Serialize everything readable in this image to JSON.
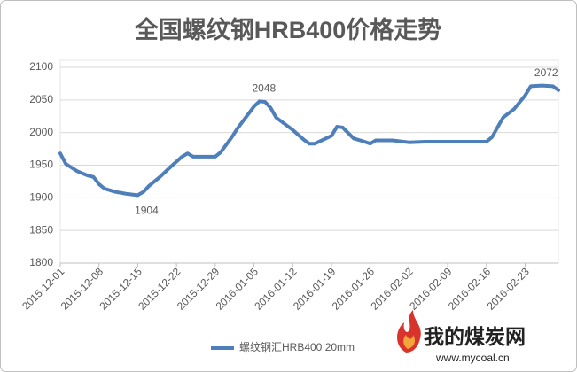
{
  "chart_data": {
    "type": "line",
    "title": "全国螺纹钢HRB400价格走势",
    "x": [
      "2015-12-01",
      "2015-12-02",
      "2015-12-04",
      "2015-12-06",
      "2015-12-07",
      "2015-12-08",
      "2015-12-09",
      "2015-12-11",
      "2015-12-13",
      "2015-12-15",
      "2015-12-16",
      "2015-12-17",
      "2015-12-19",
      "2015-12-21",
      "2015-12-23",
      "2015-12-24",
      "2015-12-25",
      "2015-12-29",
      "2015-12-30",
      "2016-01-01",
      "2016-01-02",
      "2016-01-05",
      "2016-01-06",
      "2016-01-07",
      "2016-01-08",
      "2016-01-09",
      "2016-01-12",
      "2016-01-14",
      "2016-01-15",
      "2016-01-16",
      "2016-01-19",
      "2016-01-20",
      "2016-01-21",
      "2016-01-23",
      "2016-01-25",
      "2016-01-26",
      "2016-01-27",
      "2016-01-30",
      "2016-02-02",
      "2016-02-05",
      "2016-02-16",
      "2016-02-17",
      "2016-02-19",
      "2016-02-21",
      "2016-02-23",
      "2016-02-24",
      "2016-02-26",
      "2016-02-28",
      "2016-02-29"
    ],
    "series": [
      {
        "name": "螺纹钢汇HRB400 20mm",
        "color": "#4f7fba",
        "values": [
          1968,
          1952,
          1941,
          1934,
          1932,
          1921,
          1914,
          1909,
          1906,
          1904,
          1909,
          1918,
          1932,
          1948,
          1963,
          1968,
          1963,
          1963,
          1970,
          1993,
          2006,
          2040,
          2048,
          2047,
          2038,
          2023,
          2004,
          1989,
          1983,
          1983,
          1995,
          2009,
          2008,
          1991,
          1986,
          1983,
          1988,
          1988,
          1985,
          1986,
          1986,
          1993,
          2023,
          2036,
          2057,
          2071,
          2072,
          2071,
          2065
        ]
      }
    ],
    "xlim": [
      "2015-12-01",
      "2016-02-29"
    ],
    "xticks": [
      "2015-12-01",
      "2015-12-08",
      "2015-12-15",
      "2015-12-22",
      "2015-12-29",
      "2016-01-05",
      "2016-01-12",
      "2016-01-19",
      "2016-01-26",
      "2016-02-02",
      "2016-02-09",
      "2016-02-16",
      "2016-02-23"
    ],
    "ylim": [
      1800,
      2100
    ],
    "yticks": [
      1800,
      1850,
      1900,
      1950,
      2000,
      2050,
      2100
    ],
    "grid": true,
    "legend": "bottom",
    "annotations": [
      {
        "text": "1904",
        "x": "2015-12-15",
        "y": 1904
      },
      {
        "text": "2048",
        "x": "2016-01-06",
        "y": 2048
      },
      {
        "text": "2072",
        "x": "2016-02-26",
        "y": 2072
      }
    ]
  },
  "watermark": {
    "name": "我的煤炭网",
    "url": "www.mycoal.cn"
  }
}
